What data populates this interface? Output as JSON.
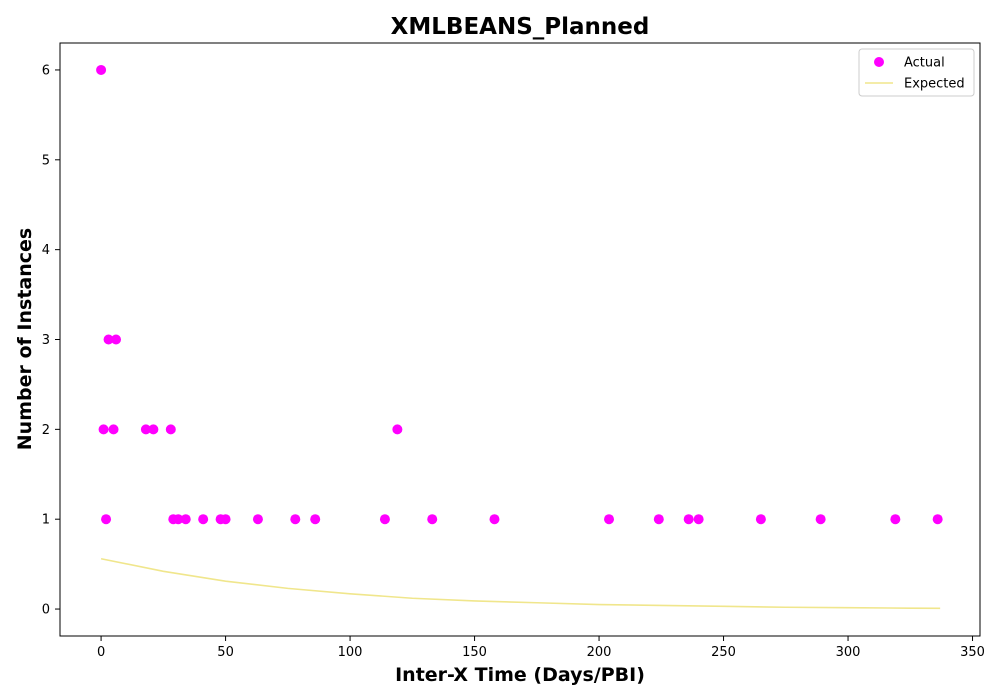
{
  "chart_data": {
    "type": "scatter",
    "title": "XMLBEANS_Planned",
    "xlabel": "Inter-X Time (Days/PBI)",
    "ylabel": "Number of Instances",
    "xlim": [
      -16.5,
      353
    ],
    "ylim": [
      -0.3,
      6.3
    ],
    "x_ticks": [
      0,
      50,
      100,
      150,
      200,
      250,
      300,
      350
    ],
    "y_ticks": [
      0,
      1,
      2,
      3,
      4,
      5,
      6
    ],
    "grid": false,
    "legend_position": "top-right",
    "series": [
      {
        "name": "Actual",
        "kind": "scatter",
        "color": "#ff00ff",
        "points": [
          {
            "x": 0,
            "y": 6
          },
          {
            "x": 1,
            "y": 2
          },
          {
            "x": 2,
            "y": 1
          },
          {
            "x": 3,
            "y": 3
          },
          {
            "x": 5,
            "y": 2
          },
          {
            "x": 6,
            "y": 3
          },
          {
            "x": 18,
            "y": 2
          },
          {
            "x": 21,
            "y": 2
          },
          {
            "x": 28,
            "y": 2
          },
          {
            "x": 29,
            "y": 1
          },
          {
            "x": 31,
            "y": 1
          },
          {
            "x": 34,
            "y": 1
          },
          {
            "x": 41,
            "y": 1
          },
          {
            "x": 48,
            "y": 1
          },
          {
            "x": 50,
            "y": 1
          },
          {
            "x": 63,
            "y": 1
          },
          {
            "x": 78,
            "y": 1
          },
          {
            "x": 86,
            "y": 1
          },
          {
            "x": 114,
            "y": 1
          },
          {
            "x": 119,
            "y": 2
          },
          {
            "x": 133,
            "y": 1
          },
          {
            "x": 158,
            "y": 1
          },
          {
            "x": 204,
            "y": 1
          },
          {
            "x": 224,
            "y": 1
          },
          {
            "x": 236,
            "y": 1
          },
          {
            "x": 240,
            "y": 1
          },
          {
            "x": 265,
            "y": 1
          },
          {
            "x": 289,
            "y": 1
          },
          {
            "x": 319,
            "y": 1
          },
          {
            "x": 336,
            "y": 1
          }
        ]
      },
      {
        "name": "Expected",
        "kind": "line",
        "color": "#f0e68c",
        "points": [
          {
            "x": 0,
            "y": 0.56
          },
          {
            "x": 25,
            "y": 0.42
          },
          {
            "x": 50,
            "y": 0.31
          },
          {
            "x": 75,
            "y": 0.23
          },
          {
            "x": 100,
            "y": 0.17
          },
          {
            "x": 125,
            "y": 0.12
          },
          {
            "x": 150,
            "y": 0.09
          },
          {
            "x": 175,
            "y": 0.07
          },
          {
            "x": 200,
            "y": 0.05
          },
          {
            "x": 225,
            "y": 0.04
          },
          {
            "x": 250,
            "y": 0.03
          },
          {
            "x": 275,
            "y": 0.02
          },
          {
            "x": 300,
            "y": 0.015
          },
          {
            "x": 325,
            "y": 0.01
          },
          {
            "x": 337,
            "y": 0.008
          }
        ]
      }
    ]
  }
}
